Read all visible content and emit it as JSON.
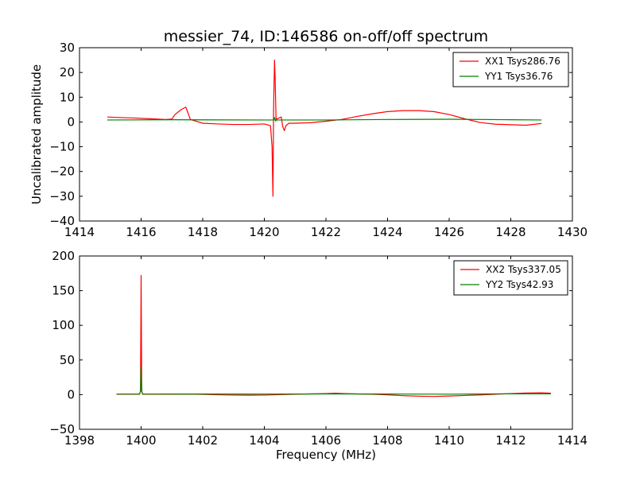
{
  "chart_data": [
    {
      "type": "line",
      "title": "messier_74, ID:146586 on-off/off spectrum",
      "xlabel": "",
      "ylabel": "Uncalibrated amplitude",
      "xlim": [
        1414,
        1430
      ],
      "ylim": [
        -40,
        30
      ],
      "xticks": [
        1414,
        1416,
        1418,
        1420,
        1422,
        1424,
        1426,
        1428,
        1430
      ],
      "yticks": [
        -40,
        -30,
        -20,
        -10,
        0,
        10,
        20,
        30
      ],
      "legend_position": "top-right",
      "series": [
        {
          "name": "XX1 Tsys286.76",
          "color": "#ff0000",
          "x": [
            1414.9,
            1415.3,
            1415.8,
            1416.3,
            1416.8,
            1417.0,
            1417.1,
            1417.3,
            1417.45,
            1417.6,
            1418.0,
            1418.5,
            1419.0,
            1419.5,
            1420.0,
            1420.2,
            1420.25,
            1420.28,
            1420.3,
            1420.33,
            1420.35,
            1420.38,
            1420.45,
            1420.55,
            1420.6,
            1420.65,
            1420.7,
            1420.8,
            1421.0,
            1421.5,
            1422.0,
            1422.5,
            1423.0,
            1423.5,
            1424.0,
            1424.5,
            1425.0,
            1425.5,
            1426.0,
            1426.5,
            1427.0,
            1427.5,
            1428.0,
            1428.5,
            1429.0
          ],
          "y": [
            2.0,
            1.8,
            1.6,
            1.3,
            1.0,
            1.2,
            3.0,
            5.0,
            6.0,
            1.0,
            -0.5,
            -0.8,
            -1.0,
            -1.0,
            -0.8,
            -1.5,
            -10.0,
            -30.0,
            5.0,
            25.0,
            18.0,
            1.0,
            1.5,
            2.0,
            -2.0,
            -3.5,
            -1.5,
            -0.5,
            -0.5,
            -0.3,
            0.3,
            1.0,
            2.2,
            3.3,
            4.2,
            4.6,
            4.6,
            4.2,
            3.0,
            1.3,
            -0.2,
            -0.9,
            -1.1,
            -1.3,
            -0.6
          ]
        },
        {
          "name": "YY1 Tsys36.76",
          "color": "#008000",
          "x": [
            1414.9,
            1417.0,
            1420.0,
            1420.3,
            1420.33,
            1420.36,
            1420.4,
            1421.0,
            1422.0,
            1424.0,
            1426.0,
            1428.0,
            1429.0
          ],
          "y": [
            0.8,
            0.9,
            0.8,
            0.8,
            1.8,
            0.4,
            0.8,
            0.8,
            0.8,
            1.0,
            1.1,
            0.9,
            0.8
          ]
        }
      ]
    },
    {
      "type": "line",
      "title": "",
      "xlabel": "Frequency (MHz)",
      "ylabel": "",
      "xlim": [
        1398,
        1414
      ],
      "ylim": [
        -50,
        200
      ],
      "xticks": [
        1398,
        1400,
        1402,
        1404,
        1406,
        1408,
        1410,
        1412,
        1414
      ],
      "yticks": [
        -50,
        0,
        50,
        100,
        150,
        200
      ],
      "legend_position": "top-right",
      "series": [
        {
          "name": "XX2 Tsys337.05",
          "color": "#ff0000",
          "x": [
            1399.2,
            1399.6,
            1399.95,
            1399.98,
            1400.0,
            1400.02,
            1400.05,
            1400.5,
            1401.0,
            1401.5,
            1402.0,
            1402.5,
            1403.0,
            1403.5,
            1404.0,
            1404.5,
            1405.0,
            1405.5,
            1406.0,
            1406.3,
            1406.6,
            1407.0,
            1407.5,
            1408.0,
            1408.5,
            1409.0,
            1409.5,
            1410.0,
            1410.5,
            1411.0,
            1411.5,
            1412.0,
            1412.5,
            1413.0,
            1413.3
          ],
          "y": [
            0.5,
            0.5,
            0.5,
            5.0,
            172.0,
            5.0,
            0.5,
            0.5,
            0.6,
            0.8,
            0.4,
            -0.2,
            -0.6,
            -0.8,
            -0.6,
            0.0,
            0.6,
            1.0,
            1.5,
            2.0,
            1.5,
            1.0,
            0.5,
            -0.3,
            -1.5,
            -2.2,
            -2.6,
            -2.0,
            -1.2,
            -0.4,
            0.5,
            1.5,
            2.4,
            2.6,
            2.0
          ]
        },
        {
          "name": "YY2 Tsys42.93",
          "color": "#008000",
          "x": [
            1399.2,
            1399.95,
            1399.98,
            1400.0,
            1400.02,
            1400.05,
            1402.0,
            1404.0,
            1406.0,
            1408.0,
            1410.0,
            1412.0,
            1413.3
          ],
          "y": [
            0.8,
            0.8,
            5.0,
            42.0,
            5.0,
            0.8,
            0.9,
            0.8,
            1.0,
            0.9,
            0.7,
            1.2,
            1.1
          ]
        }
      ]
    }
  ]
}
